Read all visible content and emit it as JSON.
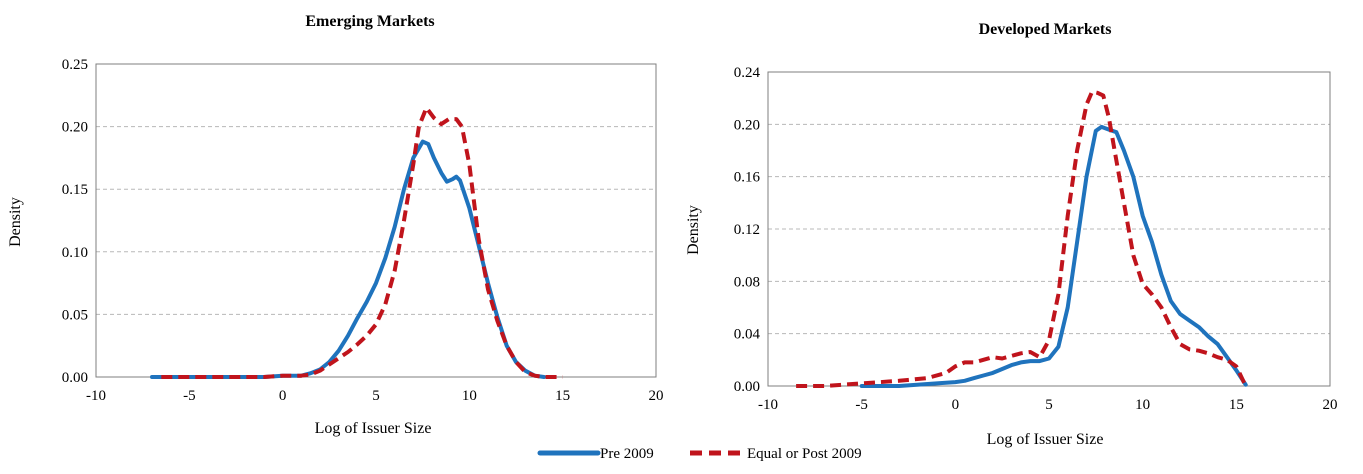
{
  "colors": {
    "pre": "#1f73bd",
    "post": "#c0141c",
    "grid": "#b8b8b8",
    "axis": "#7f7f7f"
  },
  "legend": {
    "pre_label": "Pre 2009",
    "post_label": "Equal or Post 2009",
    "placement": "bottom-center"
  },
  "chart_data": [
    {
      "type": "line",
      "title": "Emerging Markets",
      "xlabel": "Log of Issuer Size",
      "ylabel": "Density",
      "xlim": [
        -10,
        20
      ],
      "ylim": [
        0,
        0.25
      ],
      "xticks": [
        "-10",
        "-5",
        "0",
        "5",
        "10",
        "15",
        "20"
      ],
      "yticks": [
        "0.00",
        "0.05",
        "0.10",
        "0.15",
        "0.20",
        "0.25"
      ],
      "grid": "horizontal-dashed",
      "series": [
        {
          "name": "Pre 2009",
          "style": "solid",
          "x": [
            -7,
            -5,
            -3,
            -1,
            0,
            1,
            1.5,
            2,
            2.5,
            3,
            3.5,
            4,
            4.5,
            5,
            5.5,
            6,
            6.5,
            7,
            7.5,
            7.8,
            8.1,
            8.5,
            8.8,
            9.1,
            9.3,
            9.5,
            10,
            10.5,
            11,
            11.5,
            12,
            12.5,
            13,
            13.5,
            14
          ],
          "y": [
            0.0,
            0.0,
            0.0,
            0.0,
            0.001,
            0.001,
            0.003,
            0.006,
            0.012,
            0.021,
            0.033,
            0.047,
            0.06,
            0.075,
            0.095,
            0.12,
            0.15,
            0.175,
            0.188,
            0.186,
            0.175,
            0.163,
            0.156,
            0.158,
            0.16,
            0.157,
            0.135,
            0.105,
            0.075,
            0.048,
            0.025,
            0.012,
            0.005,
            0.001,
            0.0
          ]
        },
        {
          "name": "Equal or Post 2009",
          "style": "dashed",
          "x": [
            -6.5,
            -5,
            -3,
            -1,
            0,
            1,
            1.5,
            2,
            2.5,
            3,
            3.5,
            4,
            4.5,
            5,
            5.5,
            6,
            6.5,
            7,
            7.3,
            7.7,
            8.1,
            8.5,
            8.9,
            9.3,
            9.6,
            10,
            10.5,
            11,
            11.5,
            12,
            12.5,
            13,
            13.5,
            14,
            15
          ],
          "y": [
            0.0,
            0.0,
            0.0,
            0.0,
            0.001,
            0.001,
            0.002,
            0.005,
            0.01,
            0.015,
            0.02,
            0.026,
            0.033,
            0.042,
            0.058,
            0.085,
            0.125,
            0.17,
            0.2,
            0.215,
            0.207,
            0.202,
            0.206,
            0.206,
            0.2,
            0.17,
            0.11,
            0.07,
            0.045,
            0.025,
            0.012,
            0.004,
            0.001,
            0.0,
            0.0
          ]
        }
      ]
    },
    {
      "type": "line",
      "title": "Developed Markets",
      "xlabel": "Log of Issuer Size",
      "ylabel": "Density",
      "xlim": [
        -10,
        20
      ],
      "ylim": [
        0,
        0.24
      ],
      "xticks": [
        "-10",
        "-5",
        "0",
        "5",
        "10",
        "15",
        "20"
      ],
      "yticks": [
        "0.00",
        "0.04",
        "0.08",
        "0.12",
        "0.16",
        "0.20",
        "0.24"
      ],
      "grid": "horizontal-dashed",
      "series": [
        {
          "name": "Pre 2009",
          "style": "solid",
          "x": [
            -5,
            -3,
            -1,
            0,
            0.5,
            1,
            1.5,
            2,
            2.5,
            3,
            3.5,
            4,
            4.5,
            5,
            5.5,
            6,
            6.5,
            7,
            7.5,
            7.8,
            8.2,
            8.6,
            9,
            9.5,
            10,
            10.5,
            11,
            11.5,
            12,
            12.5,
            13,
            13.5,
            14,
            14.5,
            15,
            15.5
          ],
          "y": [
            0.0,
            0.0,
            0.002,
            0.003,
            0.004,
            0.006,
            0.008,
            0.01,
            0.013,
            0.016,
            0.018,
            0.019,
            0.019,
            0.021,
            0.03,
            0.06,
            0.11,
            0.16,
            0.195,
            0.198,
            0.196,
            0.194,
            0.18,
            0.16,
            0.13,
            0.11,
            0.085,
            0.065,
            0.055,
            0.05,
            0.045,
            0.038,
            0.032,
            0.022,
            0.012,
            0.001
          ]
        },
        {
          "name": "Equal or Post 2009",
          "style": "dashed",
          "x": [
            -8.5,
            -7,
            -5,
            -3,
            -1.5,
            -0.5,
            0,
            0.5,
            1,
            1.5,
            2,
            2.5,
            3,
            3.5,
            4,
            4.5,
            5,
            5.5,
            6,
            6.5,
            7,
            7.3,
            7.6,
            7.9,
            8.2,
            8.5,
            9,
            9.5,
            10,
            10.5,
            11,
            11.5,
            12,
            12.5,
            13,
            13.5,
            14,
            14.5,
            15,
            15.5
          ],
          "y": [
            0.0,
            0.0,
            0.002,
            0.004,
            0.006,
            0.01,
            0.015,
            0.018,
            0.018,
            0.02,
            0.022,
            0.021,
            0.023,
            0.025,
            0.026,
            0.022,
            0.035,
            0.07,
            0.13,
            0.18,
            0.215,
            0.225,
            0.224,
            0.222,
            0.205,
            0.18,
            0.14,
            0.1,
            0.078,
            0.07,
            0.06,
            0.045,
            0.032,
            0.028,
            0.027,
            0.025,
            0.022,
            0.02,
            0.015,
            0.0
          ]
        }
      ]
    }
  ]
}
